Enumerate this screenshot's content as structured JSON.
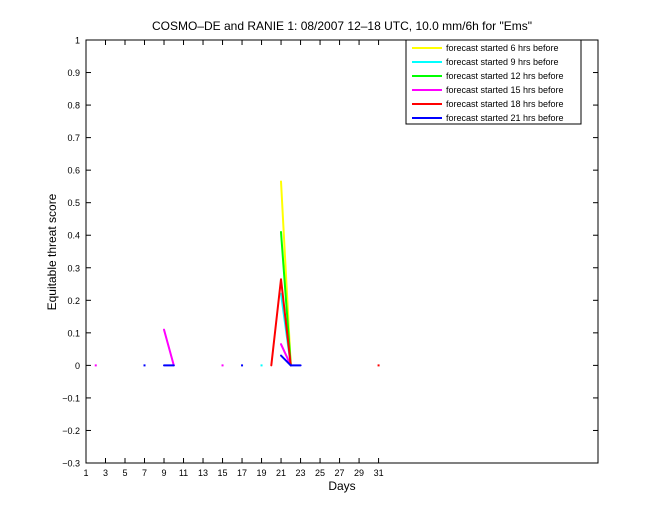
{
  "chart_data": {
    "type": "line",
    "title": "COSMO–DE and RANIE 1: 08/2007 12–18 UTC, 10.0 mm/6h for \"Ems\"",
    "xlabel": "Days",
    "ylabel": "Equitable threat score",
    "xlim": [
      1,
      53.5
    ],
    "ylim": [
      -0.3,
      1
    ],
    "x_ticks": [
      1,
      3,
      5,
      7,
      9,
      11,
      13,
      15,
      17,
      19,
      21,
      23,
      25,
      27,
      29,
      31
    ],
    "x_tick_labels": [
      "1",
      "3",
      "5",
      "7",
      "9",
      "11",
      "13",
      "15",
      "17",
      "19",
      "21",
      "23",
      "25",
      "27",
      "29",
      "31"
    ],
    "y_ticks": [
      -0.3,
      -0.2,
      -0.1,
      0,
      0.1,
      0.2,
      0.3,
      0.4,
      0.5,
      0.6,
      0.7,
      0.8,
      0.9,
      1
    ],
    "y_tick_labels": [
      "−0.3",
      "−0.2",
      "−0.1",
      "0",
      "0.1",
      "0.2",
      "0.3",
      "0.4",
      "0.5",
      "0.6",
      "0.7",
      "0.8",
      "0.9",
      "1"
    ],
    "grid": false,
    "legend_position": "top-right",
    "series": [
      {
        "name": "forecast started 6 hrs before",
        "color": "#ffff00",
        "segments": [
          [
            [
              21,
              0.565
            ],
            [
              22,
              0.0
            ]
          ]
        ],
        "dots": []
      },
      {
        "name": "forecast started 9 hrs before",
        "color": "#00ffff",
        "segments": [
          [
            [
              21,
              0.22
            ],
            [
              22,
              0.0
            ]
          ]
        ],
        "dots": [
          [
            19,
            0.0
          ]
        ]
      },
      {
        "name": "forecast started 12 hrs before",
        "color": "#00ff00",
        "segments": [
          [
            [
              21,
              0.41
            ],
            [
              22,
              0.0
            ]
          ]
        ],
        "dots": []
      },
      {
        "name": "forecast started 15 hrs before",
        "color": "#ff00ff",
        "segments": [
          [
            [
              9,
              0.11
            ],
            [
              10,
              0.0
            ]
          ],
          [
            [
              21,
              0.065
            ],
            [
              22,
              0.0
            ]
          ]
        ],
        "dots": [
          [
            2,
            0.0
          ],
          [
            15,
            0.0
          ]
        ]
      },
      {
        "name": "forecast started 18 hrs before",
        "color": "#ff0000",
        "segments": [
          [
            [
              20,
              0.0
            ],
            [
              21,
              0.265
            ],
            [
              22,
              0.0
            ]
          ]
        ],
        "dots": [
          [
            31,
            0.0
          ]
        ]
      },
      {
        "name": "forecast started 21 hrs before",
        "color": "#0000ff",
        "segments": [
          [
            [
              9,
              0.0
            ],
            [
              10,
              0.0
            ]
          ],
          [
            [
              21,
              0.03
            ],
            [
              22,
              0.0
            ],
            [
              23,
              0.0
            ]
          ]
        ],
        "dots": [
          [
            7,
            0.0
          ],
          [
            17,
            0.0
          ]
        ]
      }
    ]
  }
}
